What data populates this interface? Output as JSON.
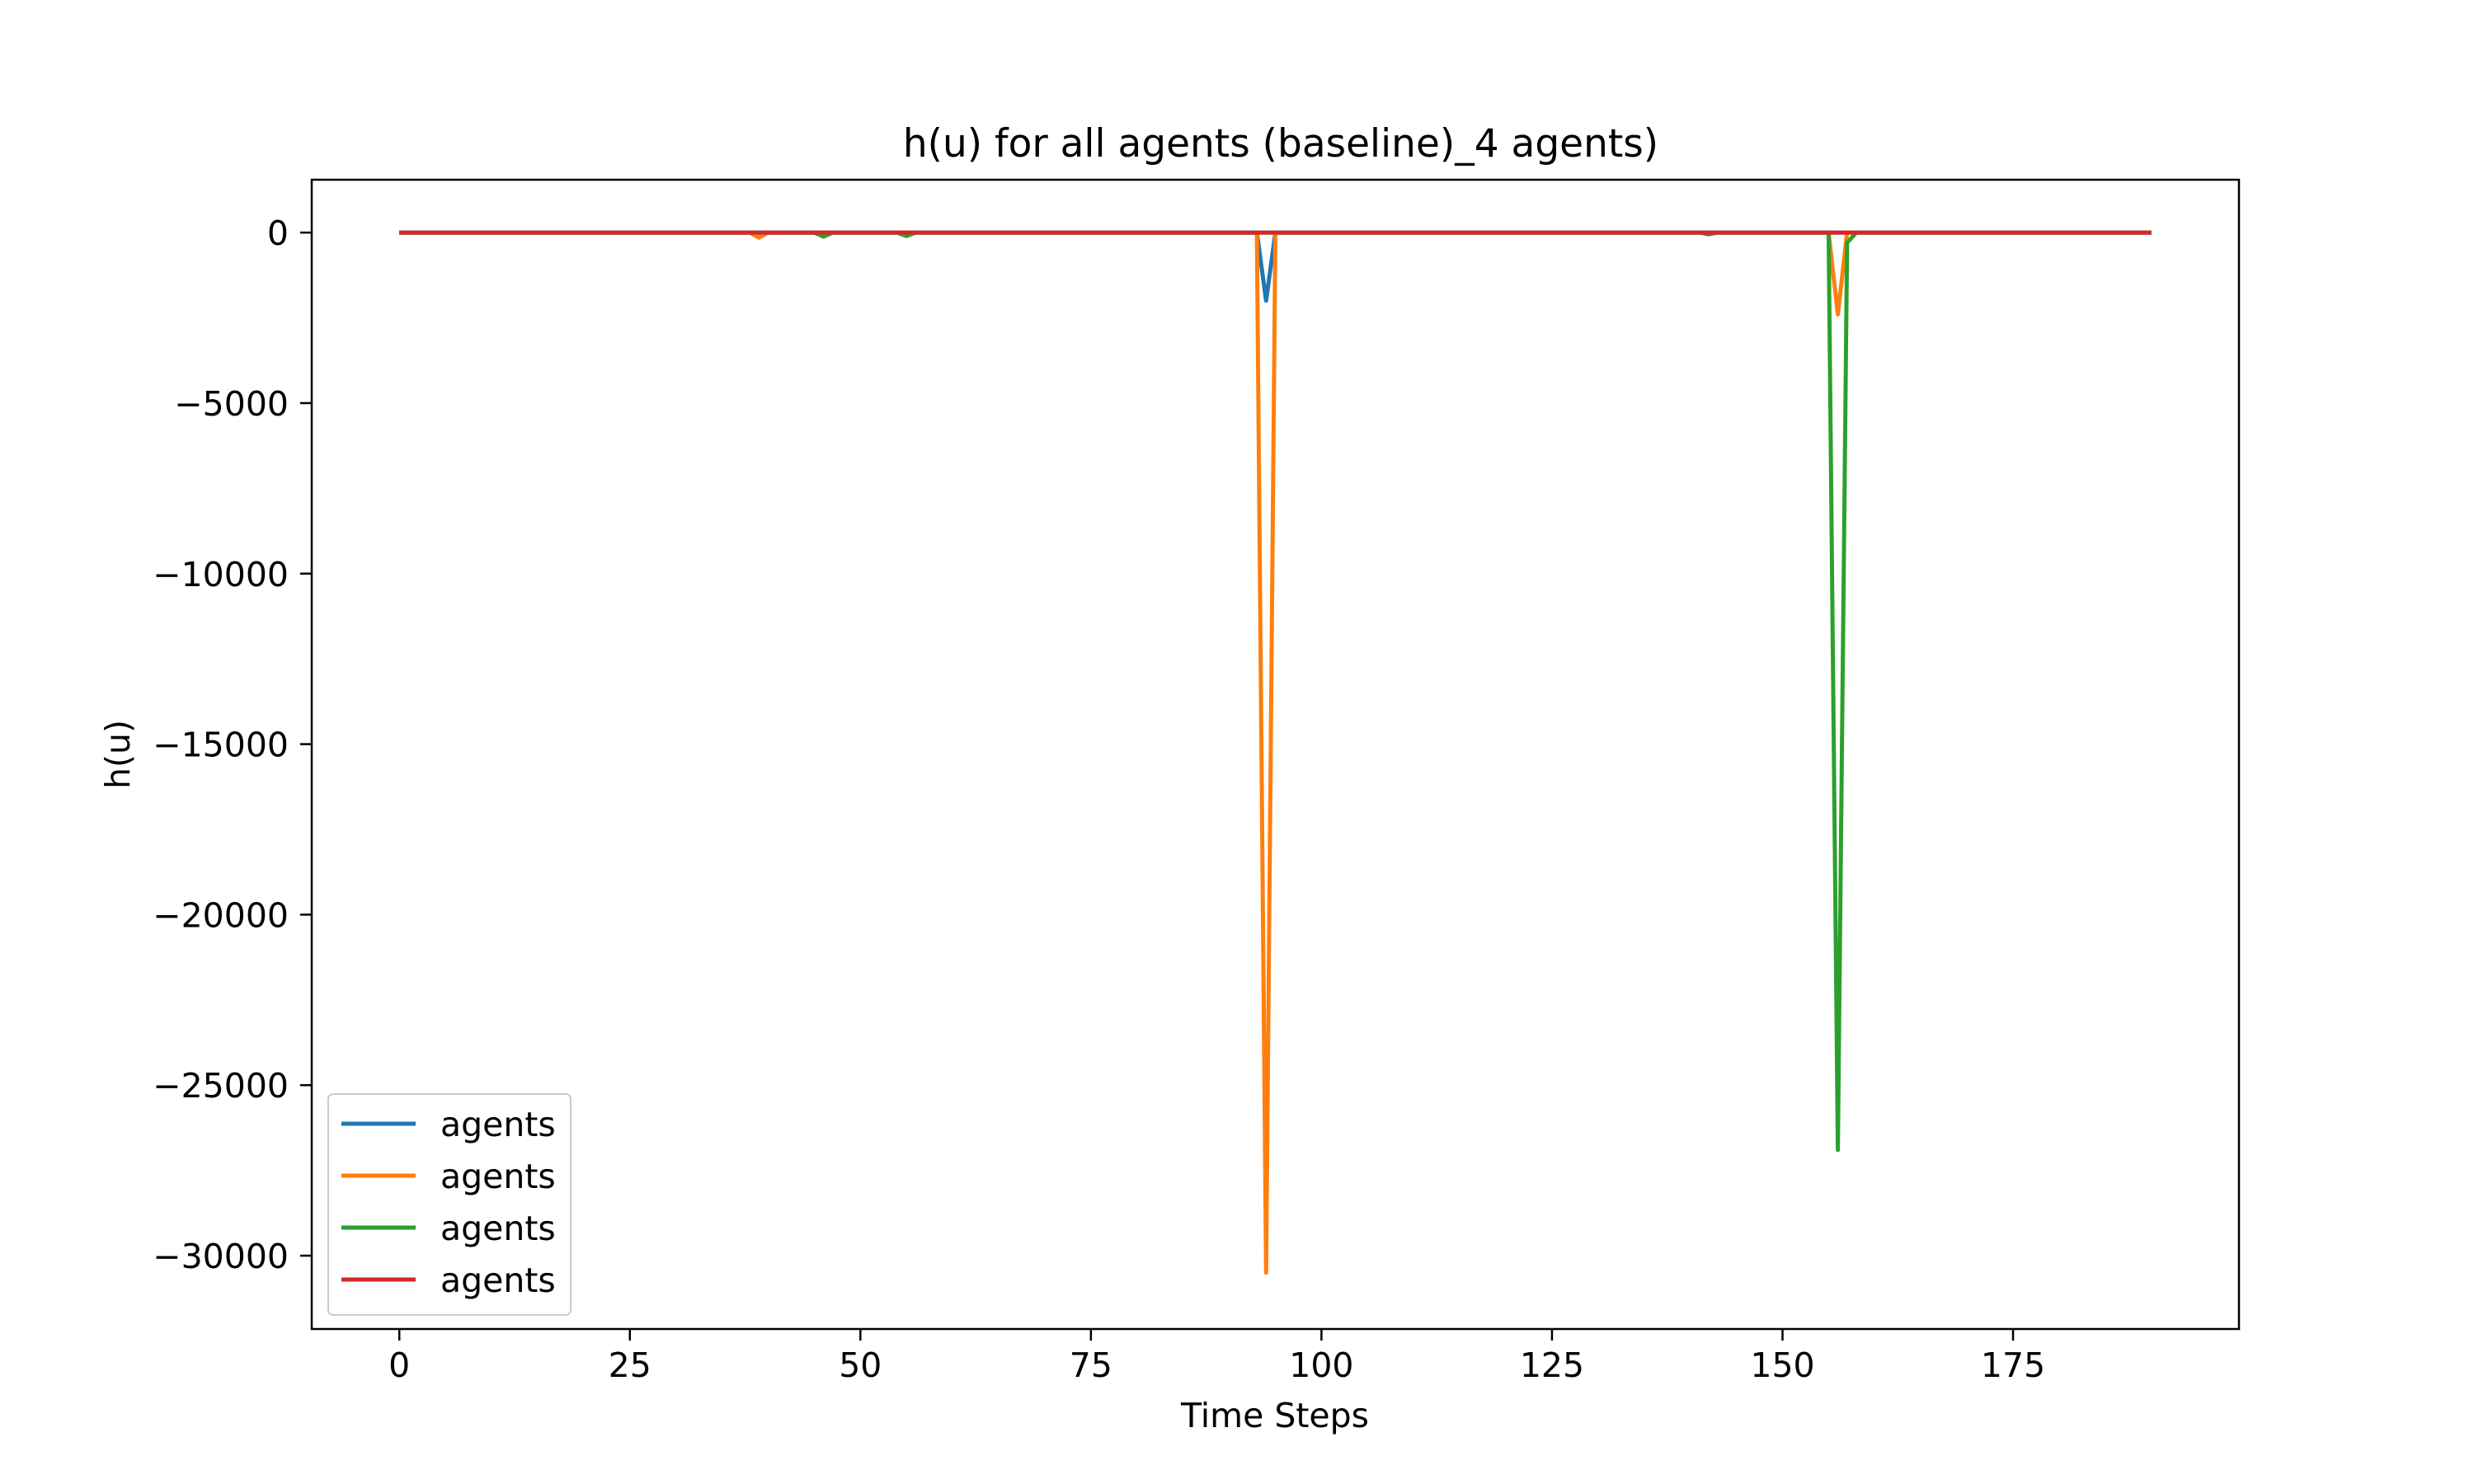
{
  "chart_data": {
    "type": "line",
    "title": "h(u) for all agents (baseline)_4 agents)",
    "xlabel": "Time Steps",
    "ylabel": "h(u)",
    "xlim": [
      -9.5,
      199.5
    ],
    "ylim": [
      -32150,
      1550
    ],
    "xticks": [
      0,
      25,
      50,
      75,
      100,
      125,
      150,
      175
    ],
    "yticks": [
      0,
      -5000,
      -10000,
      -15000,
      -20000,
      -25000,
      -30000
    ],
    "xtick_labels": [
      "0",
      "25",
      "50",
      "75",
      "100",
      "125",
      "150",
      "175"
    ],
    "ytick_labels": [
      "0",
      "−5000",
      "−10000",
      "−15000",
      "−20000",
      "−25000",
      "−30000"
    ],
    "grid": false,
    "legend_position": "lower-left",
    "x_range": [
      0,
      190
    ],
    "series": [
      {
        "name": "agents",
        "color": "#1f77b4",
        "points": [
          [
            0,
            0
          ],
          [
            93,
            0
          ],
          [
            94,
            -2000
          ],
          [
            95,
            0
          ],
          [
            141,
            0
          ],
          [
            142,
            -50
          ],
          [
            143,
            0
          ],
          [
            190,
            0
          ]
        ]
      },
      {
        "name": "agents",
        "color": "#ff7f0e",
        "points": [
          [
            0,
            0
          ],
          [
            38,
            0
          ],
          [
            39,
            -150
          ],
          [
            40,
            0
          ],
          [
            93,
            0
          ],
          [
            94,
            -30500
          ],
          [
            95,
            0
          ],
          [
            155,
            0
          ],
          [
            156,
            -2400
          ],
          [
            157,
            0
          ],
          [
            190,
            0
          ]
        ]
      },
      {
        "name": "agents",
        "color": "#2ca02c",
        "points": [
          [
            0,
            0
          ],
          [
            45,
            0
          ],
          [
            46,
            -120
          ],
          [
            47,
            0
          ],
          [
            54,
            0
          ],
          [
            55,
            -100
          ],
          [
            56,
            0
          ],
          [
            155,
            0
          ],
          [
            156,
            -26900
          ],
          [
            157,
            -300
          ],
          [
            158,
            0
          ],
          [
            190,
            0
          ]
        ]
      },
      {
        "name": "agents",
        "color": "#d62728",
        "points": [
          [
            0,
            0
          ],
          [
            190,
            0
          ]
        ]
      }
    ]
  }
}
